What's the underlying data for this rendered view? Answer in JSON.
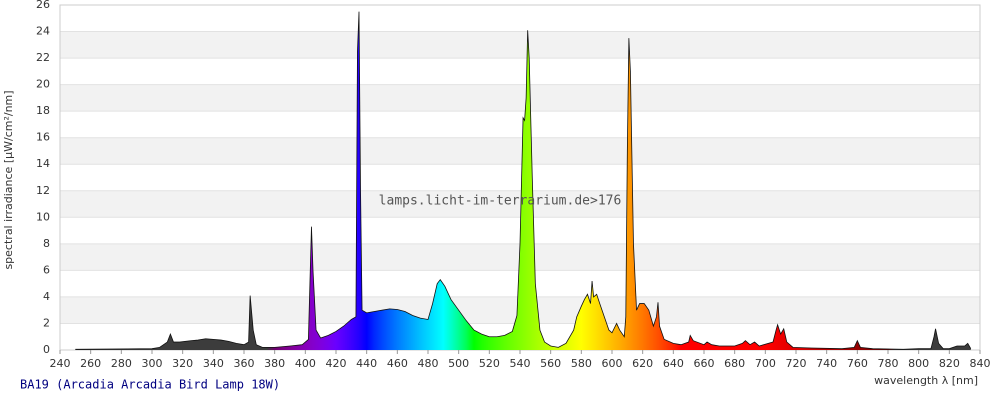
{
  "chart_data": {
    "type": "area",
    "title": "BA19 (Arcadia Arcadia Bird Lamp 18W)",
    "watermark": "lamps.licht-im-terrarium.de>176",
    "x_label": "wavelength λ [nm]",
    "y_label": "spectral irradiance [µW/cm²/nm]",
    "xlim": [
      240,
      840
    ],
    "xticks": [
      240,
      260,
      280,
      300,
      320,
      340,
      360,
      380,
      400,
      420,
      440,
      460,
      480,
      500,
      520,
      540,
      560,
      580,
      600,
      620,
      640,
      660,
      680,
      700,
      720,
      740,
      760,
      780,
      800,
      820,
      840
    ],
    "ylim": [
      0,
      26
    ],
    "yticks": [
      0,
      2,
      4,
      6,
      8,
      10,
      12,
      14,
      16,
      18,
      20,
      22,
      24,
      26
    ],
    "grid": true,
    "x": [
      250,
      300,
      305,
      310,
      312,
      314,
      318,
      325,
      330,
      335,
      340,
      345,
      350,
      355,
      360,
      363,
      364,
      366,
      368,
      372,
      380,
      390,
      398,
      402,
      404,
      405,
      407,
      410,
      415,
      420,
      425,
      430,
      433,
      434,
      435,
      436,
      437,
      440,
      445,
      450,
      455,
      460,
      465,
      470,
      475,
      480,
      483,
      486,
      488,
      491,
      495,
      500,
      505,
      510,
      515,
      520,
      525,
      530,
      535,
      538,
      540,
      542,
      543,
      544,
      545,
      546,
      548,
      550,
      553,
      556,
      560,
      565,
      570,
      575,
      577,
      580,
      582,
      584,
      586,
      587,
      588,
      590,
      592,
      595,
      598,
      600,
      603,
      605,
      608,
      609,
      610,
      611,
      612,
      614,
      616,
      618,
      621,
      624,
      627,
      629,
      630,
      631,
      634,
      640,
      645,
      650,
      651,
      653,
      660,
      662,
      665,
      670,
      680,
      685,
      687,
      690,
      693,
      696,
      705,
      707,
      708,
      710,
      712,
      714,
      718,
      730,
      750,
      758,
      760,
      762,
      770,
      790,
      800,
      808,
      810,
      811,
      813,
      816,
      820,
      825,
      830,
      832,
      834
    ],
    "values": [
      0.05,
      0.1,
      0.2,
      0.6,
      1.2,
      0.6,
      0.6,
      0.7,
      0.75,
      0.85,
      0.8,
      0.75,
      0.65,
      0.5,
      0.4,
      0.6,
      4.1,
      1.5,
      0.4,
      0.2,
      0.2,
      0.3,
      0.4,
      0.8,
      9.3,
      6,
      1.5,
      0.9,
      1.1,
      1.4,
      1.8,
      2.3,
      2.5,
      22.5,
      25.5,
      12,
      3,
      2.8,
      2.9,
      3.0,
      3.1,
      3.05,
      2.9,
      2.6,
      2.4,
      2.3,
      3.5,
      5.0,
      5.3,
      4.8,
      3.8,
      3.0,
      2.2,
      1.5,
      1.2,
      1.0,
      1.0,
      1.1,
      1.4,
      2.6,
      8,
      17.5,
      17.3,
      19,
      24.1,
      22,
      13,
      5,
      1.5,
      0.6,
      0.3,
      0.2,
      0.5,
      1.5,
      2.5,
      3.3,
      3.8,
      4.2,
      3.5,
      5.2,
      4.0,
      4.2,
      3.5,
      2.5,
      1.5,
      1.3,
      2.0,
      1.5,
      1.0,
      2.5,
      15,
      23.5,
      21,
      8,
      3,
      3.5,
      3.5,
      3.0,
      1.8,
      2.5,
      3.6,
      1.8,
      0.8,
      0.5,
      0.4,
      0.6,
      1.1,
      0.7,
      0.4,
      0.6,
      0.4,
      0.3,
      0.3,
      0.5,
      0.7,
      0.4,
      0.6,
      0.3,
      0.6,
      1.5,
      1.9,
      1.2,
      1.6,
      0.6,
      0.2,
      0.15,
      0.1,
      0.2,
      0.7,
      0.2,
      0.1,
      0.05,
      0.1,
      0.1,
      1.0,
      1.6,
      0.5,
      0.1,
      0.1,
      0.3,
      0.3,
      0.5,
      0.1
    ]
  }
}
